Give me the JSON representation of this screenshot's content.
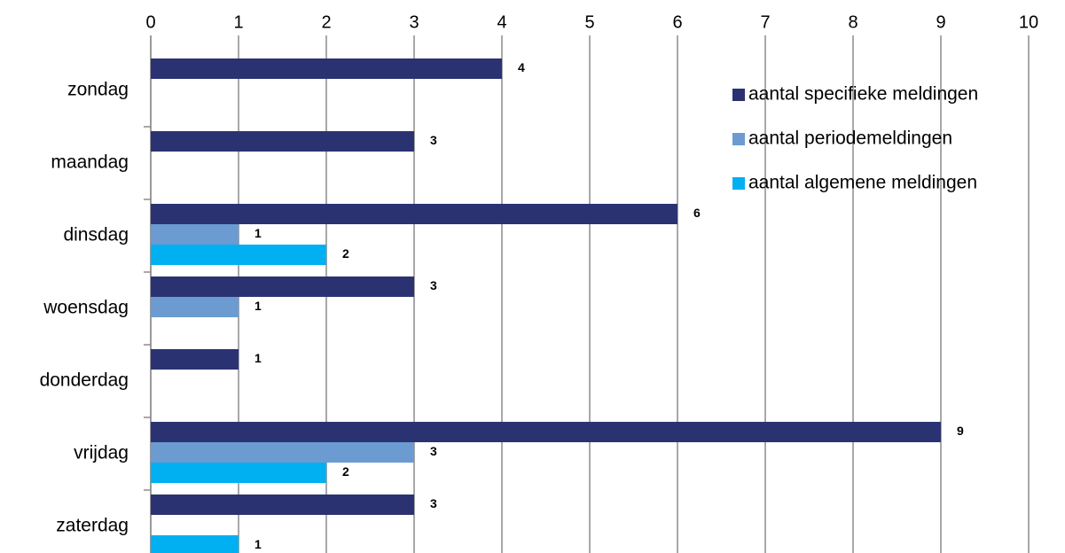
{
  "chart_data": {
    "type": "bar",
    "orientation": "horizontal",
    "categories": [
      "zondag",
      "maandag",
      "dinsdag",
      "woensdag",
      "donderdag",
      "vrijdag",
      "zaterdag"
    ],
    "series": [
      {
        "name": "aantal specifieke meldingen",
        "color": "#2b3272",
        "values": [
          4,
          3,
          6,
          3,
          1,
          9,
          3
        ]
      },
      {
        "name": "aantal periodemeldingen",
        "color": "#6b9bd1",
        "values": [
          null,
          null,
          1,
          1,
          null,
          3,
          null
        ]
      },
      {
        "name": "aantal algemene meldingen",
        "color": "#00b0f0",
        "values": [
          null,
          null,
          2,
          null,
          null,
          2,
          1
        ]
      }
    ],
    "xlim": [
      0,
      10
    ],
    "xticks": [
      0,
      1,
      2,
      3,
      4,
      5,
      6,
      7,
      8,
      9,
      10
    ],
    "grid": true,
    "legend_position": "upper right"
  }
}
